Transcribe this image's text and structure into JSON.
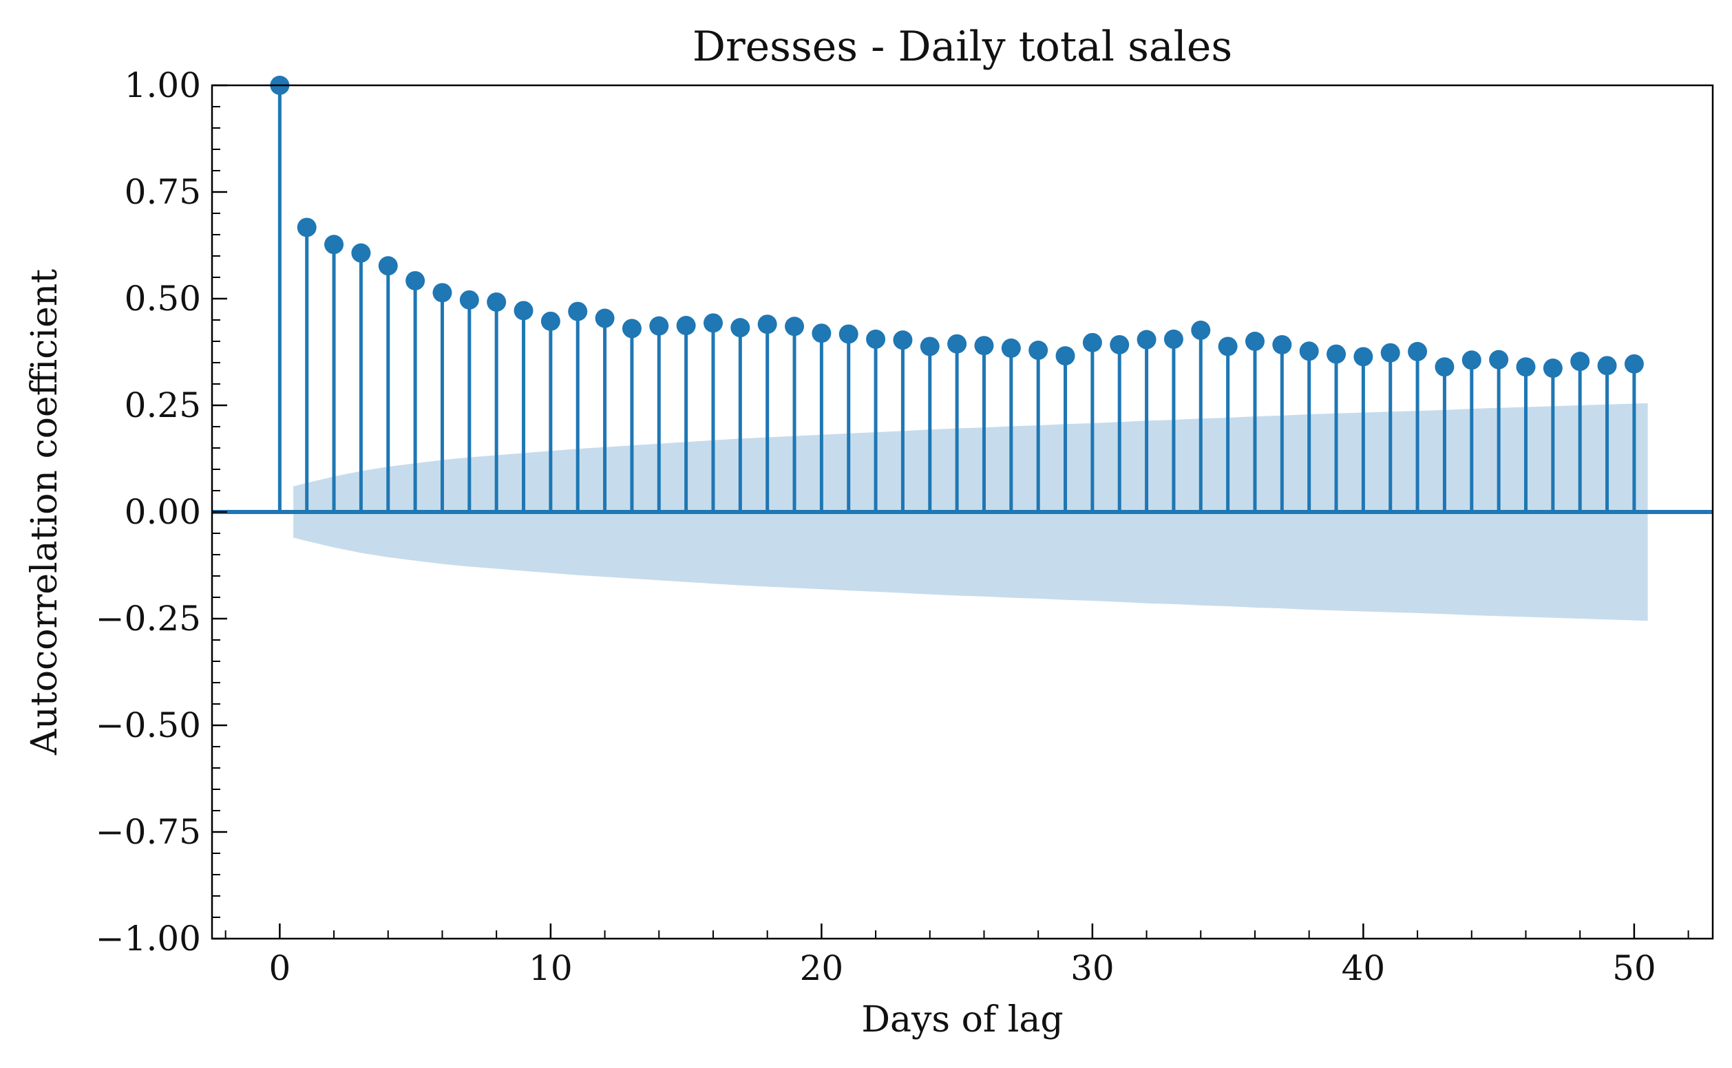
{
  "chart_data": {
    "type": "stem",
    "title": "Dresses - Daily total sales",
    "xlabel": "Days of lag",
    "ylabel": "Autocorrelation coefficient",
    "xlim": [
      -2.5,
      52.9
    ],
    "ylim": [
      -1.0,
      1.0
    ],
    "x_ticks": [
      0,
      10,
      20,
      30,
      40,
      50
    ],
    "x_tick_labels": [
      "0",
      "10",
      "20",
      "30",
      "40",
      "50"
    ],
    "y_ticks": [
      1.0,
      0.75,
      0.5,
      0.25,
      0.0,
      -0.25,
      -0.5,
      -0.75,
      -1.0
    ],
    "y_tick_labels": [
      "1.00",
      "0.75",
      "0.50",
      "0.25",
      "0.00",
      "−0.25",
      "−0.50",
      "−0.75",
      "−1.00"
    ],
    "lags": [
      0,
      1,
      2,
      3,
      4,
      5,
      6,
      7,
      8,
      9,
      10,
      11,
      12,
      13,
      14,
      15,
      16,
      17,
      18,
      19,
      20,
      21,
      22,
      23,
      24,
      25,
      26,
      27,
      28,
      29,
      30,
      31,
      32,
      33,
      34,
      35,
      36,
      37,
      38,
      39,
      40,
      41,
      42,
      43,
      44,
      45,
      46,
      47,
      48,
      49,
      50
    ],
    "values": [
      1.0,
      0.667,
      0.627,
      0.607,
      0.577,
      0.542,
      0.514,
      0.497,
      0.492,
      0.472,
      0.447,
      0.47,
      0.454,
      0.43,
      0.436,
      0.437,
      0.443,
      0.432,
      0.44,
      0.435,
      0.419,
      0.417,
      0.405,
      0.403,
      0.388,
      0.394,
      0.39,
      0.384,
      0.379,
      0.366,
      0.397,
      0.392,
      0.404,
      0.405,
      0.426,
      0.388,
      0.4,
      0.392,
      0.377,
      0.37,
      0.364,
      0.373,
      0.376,
      0.34,
      0.356,
      0.357,
      0.34,
      0.337,
      0.353,
      0.343,
      0.347
    ],
    "confidence_band": {
      "x": [
        0.5,
        1,
        2,
        3,
        4,
        5,
        6,
        7,
        8,
        9,
        10,
        11,
        12,
        13,
        14,
        15,
        16,
        17,
        18,
        19,
        20,
        21,
        22,
        23,
        24,
        25,
        26,
        27,
        28,
        29,
        30,
        31,
        32,
        33,
        34,
        35,
        36,
        37,
        38,
        39,
        40,
        41,
        42,
        43,
        44,
        45,
        46,
        47,
        48,
        49,
        50,
        50.5
      ],
      "upper": [
        0.06,
        0.068,
        0.083,
        0.096,
        0.106,
        0.114,
        0.122,
        0.128,
        0.133,
        0.138,
        0.143,
        0.148,
        0.152,
        0.156,
        0.16,
        0.164,
        0.168,
        0.172,
        0.175,
        0.178,
        0.181,
        0.184,
        0.187,
        0.19,
        0.193,
        0.196,
        0.198,
        0.201,
        0.203,
        0.206,
        0.208,
        0.211,
        0.214,
        0.216,
        0.219,
        0.221,
        0.224,
        0.226,
        0.229,
        0.231,
        0.233,
        0.235,
        0.237,
        0.239,
        0.242,
        0.244,
        0.246,
        0.248,
        0.25,
        0.252,
        0.254,
        0.255
      ]
    },
    "colors": {
      "series": "#1f77b4",
      "band": "#c6dcec",
      "axes": "#000000"
    },
    "grid": false,
    "legend": "none"
  }
}
